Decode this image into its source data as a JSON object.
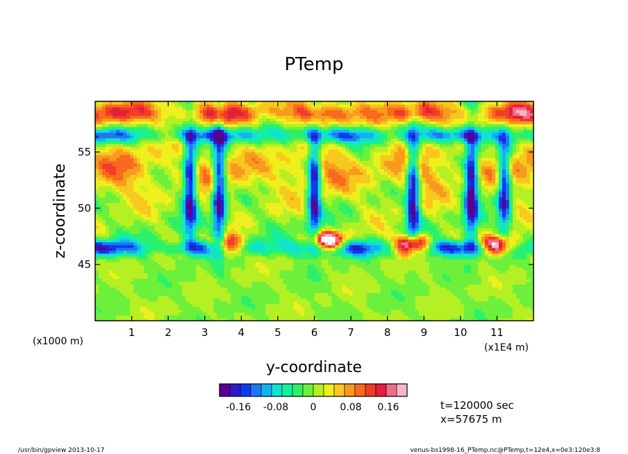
{
  "chart_data": {
    "type": "heatmap",
    "title": "PTemp",
    "xlabel": "y-coordinate",
    "ylabel": "z-coordinate",
    "x_unit": "(x1E4 m)",
    "y_unit": "(x1000 m)",
    "xlim": [
      0,
      12
    ],
    "ylim": [
      40,
      59.5
    ],
    "x_ticks": [
      "1",
      "2",
      "3",
      "4",
      "5",
      "6",
      "7",
      "8",
      "9",
      "10",
      "11"
    ],
    "y_ticks": [
      "45",
      "50",
      "55"
    ],
    "x_tick_values": [
      1,
      2,
      3,
      4,
      5,
      6,
      7,
      8,
      9,
      10,
      11
    ],
    "y_tick_values": [
      45,
      50,
      55
    ],
    "grid": false,
    "colorbar": {
      "range": [
        -0.2,
        0.2
      ],
      "tick_labels": [
        "-0.16",
        "-0.08",
        "0",
        "0.08",
        "0.16"
      ],
      "tick_values": [
        -0.16,
        -0.08,
        0,
        0.08,
        0.16
      ],
      "colors": [
        "#5a0091",
        "#2b1cc8",
        "#0a3cf0",
        "#1e78f5",
        "#10b4f0",
        "#12e1d2",
        "#14f0a0",
        "#2cf06a",
        "#6cf03c",
        "#b4f024",
        "#eef01e",
        "#f8c81e",
        "#f89a1e",
        "#f86a1e",
        "#f03c28",
        "#e61e3c",
        "#f06e8c",
        "#f8b4c8"
      ]
    },
    "features": [
      {
        "kind": "warm-band",
        "y_range": [
          51,
          56
        ],
        "value": 0.08
      },
      {
        "kind": "cold-band",
        "y": 46.5,
        "value": -0.16
      },
      {
        "kind": "cold-band",
        "y": 56.5,
        "value": -0.14
      },
      {
        "kind": "warm-band",
        "y_range": [
          57.5,
          59.5
        ],
        "value": 0.14
      },
      {
        "kind": "hot-blob",
        "x": 3.6,
        "y": 46.6
      },
      {
        "kind": "hot-blob",
        "x": 6.4,
        "y": 47.0
      },
      {
        "kind": "hot-blob",
        "x": 8.7,
        "y": 46.8
      },
      {
        "kind": "hot-blob",
        "x": 11.0,
        "y": 46.7
      },
      {
        "kind": "cold-plume",
        "x": 3.4,
        "y_range": [
          47.5,
          56
        ]
      },
      {
        "kind": "cold-plume",
        "x": 2.6,
        "y_range": [
          49,
          55.5
        ]
      },
      {
        "kind": "cold-plume",
        "x": 6.0,
        "y_range": [
          48.5,
          55.5
        ]
      },
      {
        "kind": "cold-plume",
        "x": 8.7,
        "y_range": [
          48,
          55.5
        ]
      },
      {
        "kind": "cold-plume",
        "x": 10.3,
        "y_range": [
          48.5,
          55.5
        ]
      },
      {
        "kind": "cold-plume",
        "x": 11.2,
        "y_range": [
          49,
          55
        ]
      }
    ]
  },
  "info": {
    "time": "t=120000 sec",
    "xpos": "x=57675 m"
  },
  "footer": {
    "left": "/usr/bin/gpview   2013-10-17",
    "right": "venus-bs1998-16_PTemp.nc@PTemp,t=12e4,x=0e3:120e3:8"
  }
}
